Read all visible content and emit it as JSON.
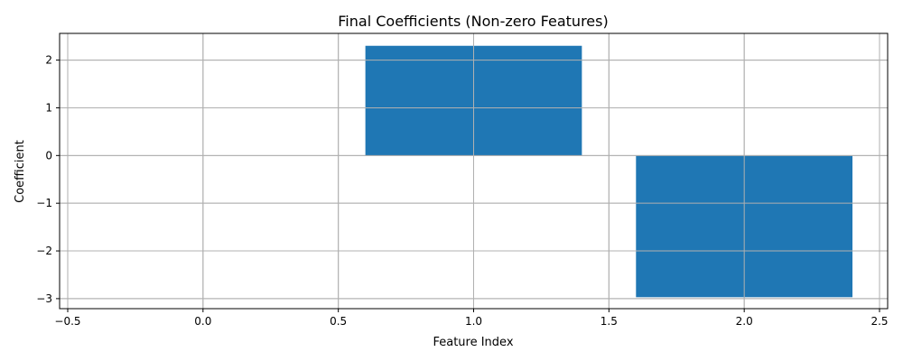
{
  "chart_data": {
    "type": "bar",
    "title": "Final Coefficients (Non-zero Features)",
    "xlabel": "Feature Index",
    "ylabel": "Coefficient",
    "x": [
      1,
      2
    ],
    "values": [
      2.3,
      -2.97
    ],
    "bar_width": 0.8,
    "xlim": [
      -0.53,
      2.53
    ],
    "ylim": [
      -3.21,
      2.56
    ],
    "xticks": [
      -0.5,
      0.0,
      0.5,
      1.0,
      1.5,
      2.0,
      2.5
    ],
    "xtick_labels": [
      "−0.5",
      "0.0",
      "0.5",
      "1.0",
      "1.5",
      "2.0",
      "2.5"
    ],
    "yticks": [
      -3,
      -2,
      -1,
      0,
      1,
      2
    ],
    "ytick_labels": [
      "−3",
      "−2",
      "−1",
      "0",
      "1",
      "2"
    ],
    "grid": true,
    "bar_color": "#1f77b4"
  }
}
